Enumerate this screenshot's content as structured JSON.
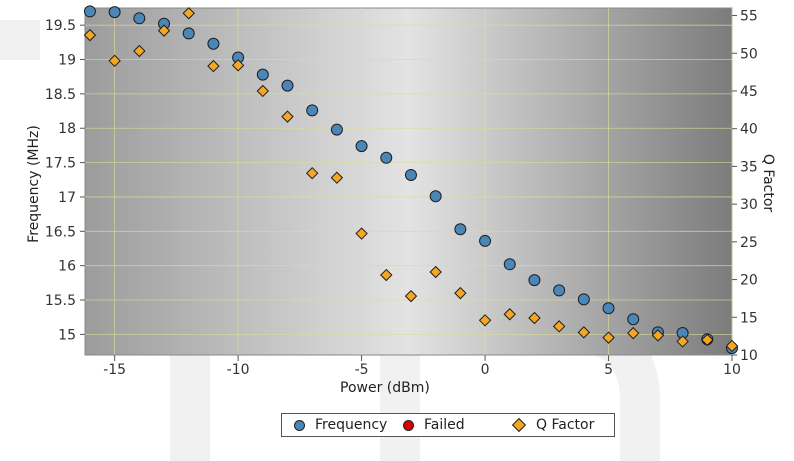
{
  "chart_data": {
    "type": "scatter",
    "title": "",
    "xlabel": "Power (dBm)",
    "ylabel_left": "Frequency (MHz)",
    "ylabel_right": "Q Factor",
    "xlim": [
      -16.2,
      10
    ],
    "ylim_left": [
      14.7,
      19.75
    ],
    "ylim_right": [
      10,
      56
    ],
    "x_ticks": [
      -15,
      -10,
      -5,
      0,
      5,
      10
    ],
    "y_left_ticks": [
      15,
      15.5,
      16,
      16.5,
      17,
      17.5,
      18,
      18.5,
      19,
      19.5
    ],
    "y_right_ticks": [
      10,
      15,
      20,
      25,
      30,
      35,
      40,
      45,
      50,
      55
    ],
    "grid": true,
    "legend_position": "bottom-center",
    "series": [
      {
        "name": "Frequency",
        "axis": "left",
        "marker": "circle",
        "color": "#4a86b8",
        "points": [
          [
            -16,
            19.7
          ],
          [
            -15,
            19.69
          ],
          [
            -14,
            19.6
          ],
          [
            -13,
            19.52
          ],
          [
            -12,
            19.38
          ],
          [
            -11,
            19.23
          ],
          [
            -10,
            19.03
          ],
          [
            -9,
            18.78
          ],
          [
            -8,
            18.62
          ],
          [
            -7,
            18.26
          ],
          [
            -6,
            17.98
          ],
          [
            -5,
            17.74
          ],
          [
            -4,
            17.57
          ],
          [
            -3,
            17.32
          ],
          [
            -2,
            17.01
          ],
          [
            -1,
            16.53
          ],
          [
            0,
            16.36
          ],
          [
            1,
            16.02
          ],
          [
            2,
            15.79
          ],
          [
            3,
            15.64
          ],
          [
            4,
            15.51
          ],
          [
            5,
            15.38
          ],
          [
            6,
            15.22
          ],
          [
            7,
            15.03
          ],
          [
            8,
            15.02
          ],
          [
            9,
            14.93
          ],
          [
            10,
            14.8
          ]
        ]
      },
      {
        "name": "Failed",
        "axis": "left",
        "marker": "circle",
        "color": "#d90000",
        "points": []
      },
      {
        "name": "Q Factor",
        "axis": "right",
        "marker": "diamond",
        "color": "#f5a623",
        "points": [
          [
            -16,
            52.4
          ],
          [
            -15,
            49
          ],
          [
            -14,
            50.3
          ],
          [
            -13,
            53
          ],
          [
            -12,
            55.3
          ],
          [
            -11,
            48.3
          ],
          [
            -10,
            48.4
          ],
          [
            -9,
            45
          ],
          [
            -8,
            41.6
          ],
          [
            -7,
            34.1
          ],
          [
            -6,
            33.5
          ],
          [
            -5,
            26.1
          ],
          [
            -4,
            20.6
          ],
          [
            -3,
            17.8
          ],
          [
            -2,
            21
          ],
          [
            -1,
            18.2
          ],
          [
            0,
            14.6
          ],
          [
            1,
            15.4
          ],
          [
            2,
            14.9
          ],
          [
            3,
            13.8
          ],
          [
            4,
            13
          ],
          [
            5,
            12.3
          ],
          [
            6,
            12.9
          ],
          [
            7,
            12.6
          ],
          [
            8,
            11.8
          ],
          [
            9,
            12
          ],
          [
            10,
            11.2
          ]
        ]
      }
    ]
  }
}
